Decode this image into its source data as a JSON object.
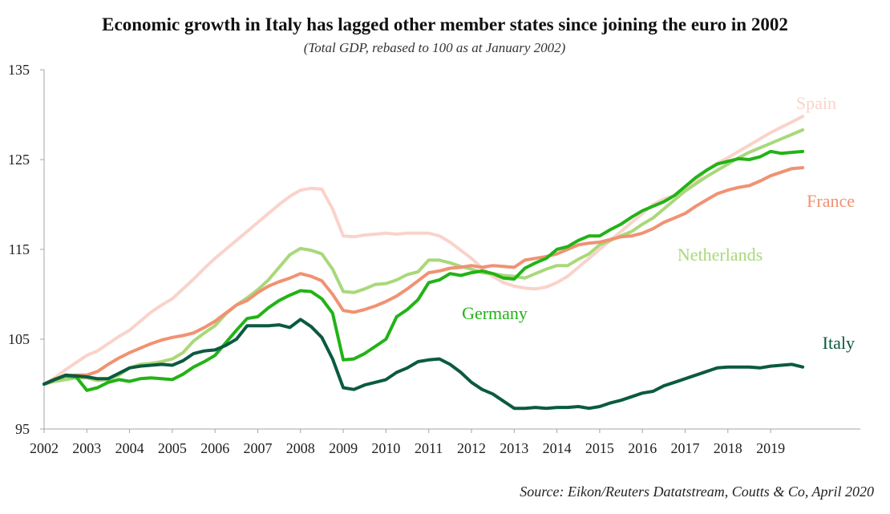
{
  "chart_data": {
    "type": "line",
    "title": "Economic growth in Italy has lagged other member states since joining the euro  in 2002",
    "subtitle": "(Total GDP, rebased to 100 as at January 2002)",
    "source": "Source: Eikon/Reuters Datatstream, Coutts & Co, April 2020",
    "xlabel": "",
    "ylabel": "",
    "xlim": [
      2002,
      2019.75
    ],
    "ylim": [
      95,
      135
    ],
    "yticks": [
      95,
      105,
      115,
      125,
      135
    ],
    "xticks": [
      "2002",
      "2003",
      "2004",
      "2005",
      "2006",
      "2007",
      "2008",
      "2009",
      "2010",
      "2011",
      "2012",
      "2013",
      "2014",
      "2015",
      "2016",
      "2017",
      "2018",
      "2019"
    ],
    "grid": false,
    "legend": "inline labels at line ends",
    "x_frequency": "quarterly",
    "x_start": 2002,
    "series": [
      {
        "name": "Spain",
        "color": "#f9d3ca",
        "values": [
          100,
          100.7,
          101.6,
          102.4,
          103.2,
          103.7,
          104.5,
          105.3,
          106,
          107,
          108,
          108.8,
          109.5,
          110.6,
          111.7,
          112.9,
          114,
          115,
          116,
          117,
          118,
          119,
          120,
          120.9,
          121.6,
          121.8,
          121.7,
          119.5,
          116.5,
          116.4,
          116.6,
          116.7,
          116.8,
          116.7,
          116.8,
          116.8,
          116.8,
          116.5,
          115.8,
          114.9,
          114,
          112.9,
          112,
          111.3,
          110.9,
          110.7,
          110.6,
          110.8,
          111.3,
          112,
          113,
          114,
          115,
          116,
          117,
          118,
          119,
          120,
          120.6,
          121,
          121.5,
          122.6,
          123.8,
          124.6,
          125.2,
          125.9,
          126.6,
          127.3,
          128,
          128.6,
          129.2,
          129.8
        ]
      },
      {
        "name": "Netherlands",
        "color": "#a9d87a",
        "values": [
          100,
          100.3,
          100.5,
          100.7,
          100.7,
          100.4,
          100.5,
          101,
          101.8,
          102.2,
          102.3,
          102.5,
          102.8,
          103.5,
          104.8,
          105.7,
          106.5,
          107.8,
          108.8,
          109.6,
          110.5,
          111.6,
          113,
          114.4,
          115.1,
          114.9,
          114.5,
          112.8,
          110.3,
          110.2,
          110.6,
          111.1,
          111.2,
          111.6,
          112.2,
          112.5,
          113.8,
          113.8,
          113.5,
          113.1,
          112.8,
          112.4,
          112.3,
          112.1,
          112,
          111.8,
          112.3,
          112.8,
          113.2,
          113.2,
          113.9,
          114.5,
          115.5,
          116,
          116.5,
          117,
          117.8,
          118.5,
          119.5,
          120.5,
          121.5,
          122.3,
          123.1,
          123.8,
          124.5,
          125.2,
          125.8,
          126.3,
          126.8,
          127.3,
          127.8,
          128.3
        ]
      },
      {
        "name": "France",
        "color": "#f09273",
        "values": [
          100,
          100.6,
          100.9,
          101.0,
          101.0,
          101.4,
          102.2,
          102.9,
          103.5,
          104,
          104.5,
          104.9,
          105.2,
          105.4,
          105.7,
          106.3,
          107,
          107.9,
          108.8,
          109.3,
          110.2,
          110.9,
          111.4,
          111.8,
          112.3,
          112.0,
          111.5,
          110,
          108.2,
          108.0,
          108.3,
          108.7,
          109.2,
          109.8,
          110.6,
          111.5,
          112.4,
          112.6,
          112.9,
          113.0,
          113.2,
          113.0,
          113.2,
          113.1,
          113.0,
          113.8,
          114.0,
          114.2,
          114.5,
          115.0,
          115.5,
          115.7,
          115.8,
          116.1,
          116.4,
          116.5,
          116.8,
          117.3,
          118.0,
          118.5,
          119,
          119.8,
          120.5,
          121.2,
          121.6,
          121.9,
          122.1,
          122.6,
          123.2,
          123.6,
          124.0,
          124.1
        ]
      },
      {
        "name": "Germany",
        "color": "#22b316",
        "values": [
          100,
          100.5,
          100.9,
          100.8,
          99.3,
          99.6,
          100.2,
          100.5,
          100.3,
          100.6,
          100.7,
          100.6,
          100.5,
          101.1,
          101.9,
          102.5,
          103.2,
          104.6,
          106.0,
          107.3,
          107.5,
          108.5,
          109.3,
          109.9,
          110.4,
          110.3,
          109.5,
          107.9,
          102.7,
          102.8,
          103.4,
          104.2,
          105,
          107.5,
          108.3,
          109.4,
          111.3,
          111.6,
          112.3,
          112.1,
          112.4,
          112.6,
          112.3,
          111.8,
          111.7,
          112.9,
          113.5,
          114.0,
          115,
          115.3,
          116.0,
          116.5,
          116.5,
          117.2,
          117.8,
          118.6,
          119.3,
          119.8,
          120.3,
          121,
          122,
          123,
          123.8,
          124.5,
          124.8,
          125.1,
          125.0,
          125.3,
          125.9,
          125.7,
          125.8,
          125.9
        ]
      },
      {
        "name": "Italy",
        "color": "#0b5a41",
        "values": [
          100,
          100.5,
          101.0,
          100.9,
          100.8,
          100.6,
          100.6,
          101.2,
          101.8,
          102.0,
          102.1,
          102.2,
          102.1,
          102.6,
          103.4,
          103.7,
          103.8,
          104.3,
          105.0,
          106.5,
          106.5,
          106.5,
          106.6,
          106.3,
          107.2,
          106.4,
          105.2,
          102.8,
          99.6,
          99.4,
          99.9,
          100.2,
          100.5,
          101.3,
          101.8,
          102.5,
          102.7,
          102.8,
          102.2,
          101.3,
          100.2,
          99.4,
          98.9,
          98.1,
          97.3,
          97.3,
          97.4,
          97.3,
          97.4,
          97.4,
          97.5,
          97.3,
          97.5,
          97.9,
          98.2,
          98.6,
          99.0,
          99.2,
          99.8,
          100.2,
          100.6,
          101.0,
          101.4,
          101.8,
          101.9,
          101.9,
          101.9,
          101.8,
          102.0,
          102.1,
          102.2,
          101.9
        ]
      }
    ]
  }
}
